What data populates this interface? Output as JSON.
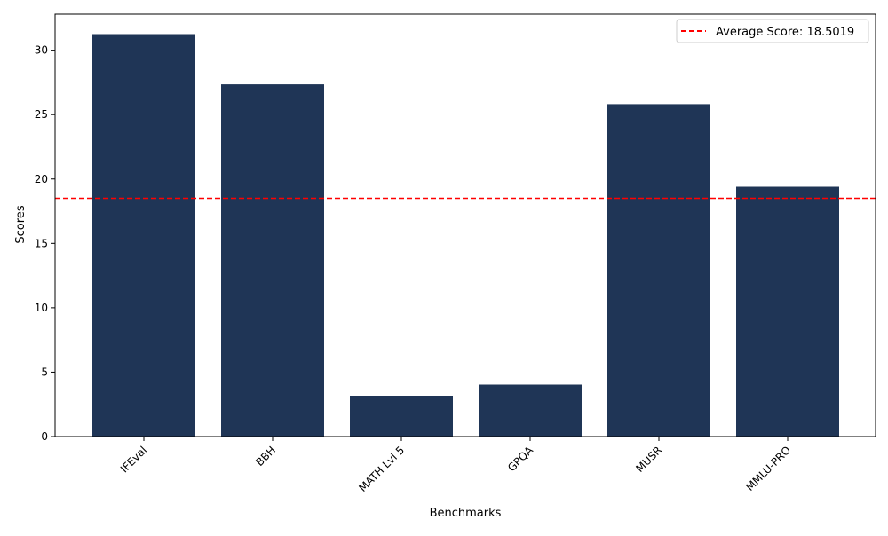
{
  "chart_data": {
    "type": "bar",
    "title": "",
    "xlabel": "Benchmarks",
    "ylabel": "Scores",
    "categories": [
      "IFEval",
      "BBH",
      "MATH Lvl 5",
      "GPQA",
      "MUSR",
      "MMLU-PRO"
    ],
    "values": [
      31.25,
      27.35,
      3.17,
      4.03,
      25.81,
      19.4
    ],
    "ylim": [
      0,
      32.8
    ],
    "yticks": [
      0,
      5,
      10,
      15,
      20,
      25,
      30
    ],
    "bar_color": "#1f3556",
    "grid": false,
    "average_line": {
      "value": 18.5019,
      "label": "Average Score: 18.5019",
      "color": "#ff0000",
      "style": "dashed"
    },
    "legend": {
      "placement": "top-right",
      "entries": [
        "Average Score: 18.5019"
      ]
    },
    "x_tick_rotation": 45
  }
}
